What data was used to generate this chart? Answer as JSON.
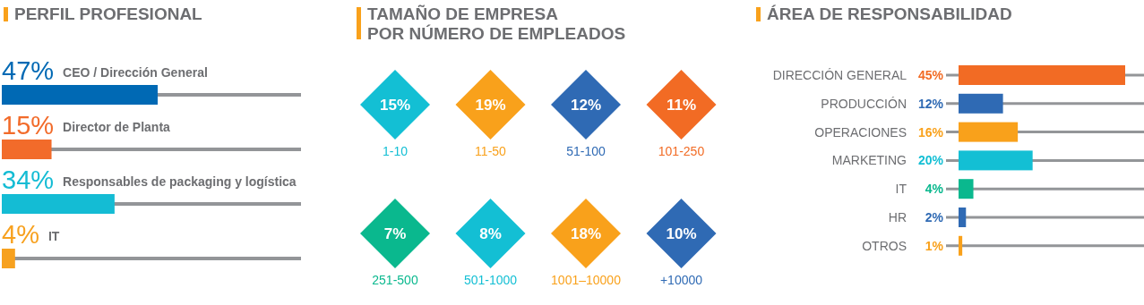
{
  "chart_data": [
    {
      "type": "bar",
      "orientation": "horizontal",
      "title": "PERFIL PROFESIONAL",
      "categories": [
        "CEO / Dirección General",
        "Director de Planta",
        "Responsables de packaging y logística",
        "IT"
      ],
      "values": [
        47,
        15,
        34,
        4
      ],
      "colors": [
        "#0069b4",
        "#f26b2a",
        "#14bcd4",
        "#f7a11f"
      ],
      "value_labels": [
        "47%",
        "15%",
        "34%",
        "4%"
      ]
    },
    {
      "type": "other",
      "title": "TAMAÑO DE EMPRESA\nPOR NÚMERO DE EMPLEADOS",
      "categories": [
        "1-10",
        "11-50",
        "51-100",
        "101-250",
        "251-500",
        "501-1000",
        "1001–10000",
        "+10000"
      ],
      "values": [
        15,
        19,
        12,
        11,
        7,
        8,
        18,
        10
      ],
      "colors": [
        "#13bfd4",
        "#f9a11b",
        "#2f6ab4",
        "#f26b24",
        "#0ab88e",
        "#13bfd4",
        "#f9a11b",
        "#2f6ab4"
      ],
      "value_labels": [
        "15%",
        "19%",
        "12%",
        "11%",
        "7%",
        "8%",
        "18%",
        "10%"
      ]
    },
    {
      "type": "bar",
      "orientation": "horizontal",
      "title": "ÁREA DE RESPONSABILIDAD",
      "categories": [
        "DIRECCIÓN GENERAL",
        "PRODUCCIÓN",
        "OPERACIONES",
        "MARKETING",
        "IT",
        "HR",
        "OTROS"
      ],
      "values": [
        45,
        12,
        16,
        20,
        4,
        2,
        1
      ],
      "colors": [
        "#f26b24",
        "#2f6ab4",
        "#f9a11b",
        "#13bfd4",
        "#0ab88e",
        "#2f6ab4",
        "#f9a11b"
      ],
      "value_labels": [
        "45%",
        "12%",
        "16%",
        "20%",
        "4%",
        "2%",
        "1%"
      ]
    }
  ]
}
